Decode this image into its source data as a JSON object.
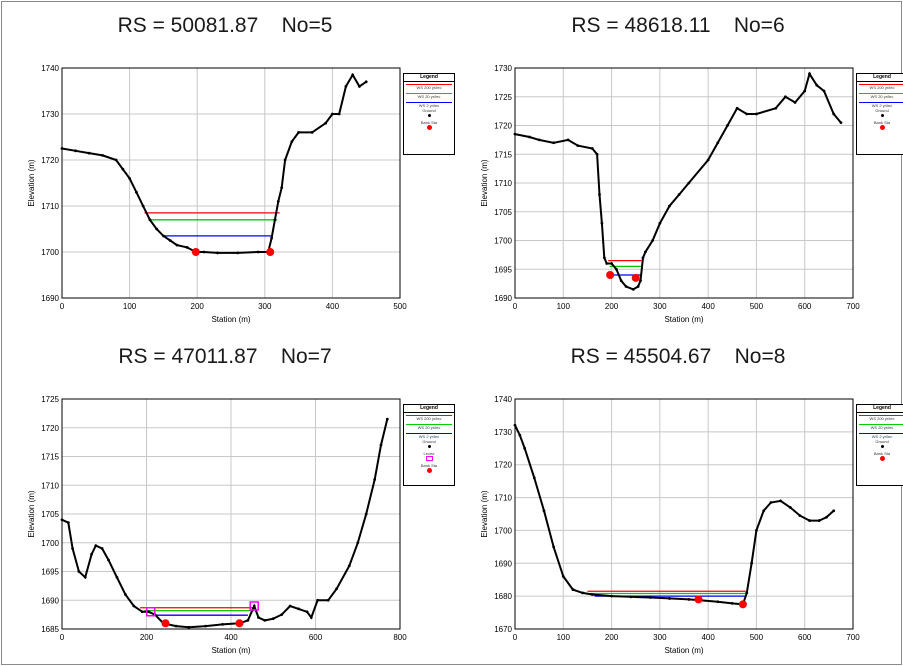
{
  "colors": {
    "ground": "#000000",
    "ws_200": "#ff0000",
    "ws_20": "#00cc00",
    "ws_2": "#0000ff",
    "levee": "#ff00ff",
    "bank": "#ff0000",
    "grid": "#c8c8c8"
  },
  "chart_data": [
    {
      "type": "line",
      "title": "RS = 50081.87    No=5",
      "xlabel": "Station (m)",
      "ylabel": "Elevation (m)",
      "xlim": [
        0,
        500
      ],
      "ylim": [
        1690,
        1740
      ],
      "xticks": [
        0,
        100,
        200,
        300,
        400,
        500
      ],
      "yticks": [
        1690,
        1700,
        1710,
        1720,
        1730,
        1740
      ],
      "legend": {
        "title": "Legend",
        "entries": [
          "WS 200 yr/lec",
          "WS 20 yr/lec",
          "WS 2 yr/lec",
          "Ground",
          "Bank Sta"
        ],
        "placement": "right"
      },
      "ground": [
        [
          0,
          1722.5
        ],
        [
          20,
          1722
        ],
        [
          40,
          1721.5
        ],
        [
          60,
          1721
        ],
        [
          80,
          1720
        ],
        [
          90,
          1718
        ],
        [
          100,
          1716
        ],
        [
          110,
          1713
        ],
        [
          120,
          1710
        ],
        [
          130,
          1707
        ],
        [
          140,
          1705
        ],
        [
          150,
          1703.5
        ],
        [
          160,
          1702.5
        ],
        [
          170,
          1701.5
        ],
        [
          185,
          1701
        ],
        [
          198,
          1700
        ],
        [
          210,
          1700
        ],
        [
          230,
          1699.8
        ],
        [
          260,
          1699.8
        ],
        [
          290,
          1700
        ],
        [
          305,
          1700
        ],
        [
          310,
          1703
        ],
        [
          315,
          1707
        ],
        [
          320,
          1711
        ],
        [
          325,
          1714
        ],
        [
          330,
          1720
        ],
        [
          340,
          1724
        ],
        [
          350,
          1726
        ],
        [
          370,
          1726
        ],
        [
          390,
          1728
        ],
        [
          400,
          1730
        ],
        [
          410,
          1730
        ],
        [
          420,
          1736
        ],
        [
          430,
          1738.5
        ],
        [
          440,
          1736
        ],
        [
          450,
          1737
        ]
      ],
      "water": [
        {
          "name": "WS 200 yr/lec",
          "elev": 1708.5,
          "x": [
            122,
            322
          ]
        },
        {
          "name": "WS 20 yr/lec",
          "elev": 1707,
          "x": [
            128,
            318
          ]
        },
        {
          "name": "WS 2 yr/lec",
          "elev": 1703.5,
          "x": [
            150,
            312
          ]
        }
      ],
      "banks": [
        [
          198,
          1700
        ],
        [
          308,
          1700
        ]
      ],
      "levees": []
    },
    {
      "type": "line",
      "title": "RS = 48618.11    No=6",
      "xlabel": "Station (m)",
      "ylabel": "Elevation (m)",
      "xlim": [
        0,
        700
      ],
      "ylim": [
        1690,
        1730
      ],
      "xticks": [
        0,
        100,
        200,
        300,
        400,
        500,
        600,
        700
      ],
      "yticks": [
        1690,
        1695,
        1700,
        1705,
        1710,
        1715,
        1720,
        1725,
        1730
      ],
      "legend": {
        "title": "Legend",
        "entries": [
          "WS 200 yr/lec",
          "WS 20 yr/lec",
          "WS 2 yr/lec",
          "Ground",
          "Bank Sta"
        ],
        "placement": "right"
      },
      "ground": [
        [
          0,
          1718.5
        ],
        [
          30,
          1718
        ],
        [
          50,
          1717.5
        ],
        [
          80,
          1717
        ],
        [
          110,
          1717.5
        ],
        [
          130,
          1716.5
        ],
        [
          160,
          1716
        ],
        [
          170,
          1715
        ],
        [
          175,
          1708
        ],
        [
          180,
          1703
        ],
        [
          185,
          1697
        ],
        [
          190,
          1696
        ],
        [
          200,
          1696
        ],
        [
          210,
          1695
        ],
        [
          220,
          1693
        ],
        [
          230,
          1692
        ],
        [
          245,
          1691.5
        ],
        [
          255,
          1692
        ],
        [
          260,
          1693
        ],
        [
          265,
          1697
        ],
        [
          270,
          1698
        ],
        [
          285,
          1700
        ],
        [
          300,
          1703
        ],
        [
          320,
          1706
        ],
        [
          340,
          1708
        ],
        [
          360,
          1710
        ],
        [
          400,
          1714
        ],
        [
          420,
          1717
        ],
        [
          440,
          1720
        ],
        [
          460,
          1723
        ],
        [
          480,
          1722
        ],
        [
          500,
          1722
        ],
        [
          540,
          1723
        ],
        [
          560,
          1725
        ],
        [
          580,
          1724
        ],
        [
          600,
          1726
        ],
        [
          610,
          1729
        ],
        [
          625,
          1727
        ],
        [
          640,
          1726
        ],
        [
          660,
          1722
        ],
        [
          675,
          1720.5
        ]
      ],
      "water": [
        {
          "name": "WS 200 yr/lec",
          "elev": 1696.5,
          "x": [
            193,
            262
          ]
        },
        {
          "name": "WS 20 yr/lec",
          "elev": 1695.5,
          "x": [
            196,
            262
          ]
        },
        {
          "name": "WS 2 yr/lec",
          "elev": 1694,
          "x": [
            205,
            260
          ]
        }
      ],
      "banks": [
        [
          197,
          1694
        ],
        [
          250,
          1693.5
        ]
      ],
      "levees": []
    },
    {
      "type": "line",
      "title": "RS = 47011.87    No=7",
      "xlabel": "Station (m)",
      "ylabel": "Elevation (m)",
      "xlim": [
        0,
        800
      ],
      "ylim": [
        1685,
        1725
      ],
      "xticks": [
        0,
        200,
        400,
        600,
        800
      ],
      "yticks": [
        1685,
        1690,
        1695,
        1700,
        1705,
        1710,
        1715,
        1720,
        1725
      ],
      "legend": {
        "title": "Legend",
        "entries": [
          "WS 200 yr/lec",
          "WS 20 yr/lec",
          "WS 2 yr/lec",
          "Ground",
          "Levee",
          "Bank Sta"
        ],
        "placement": "right"
      },
      "ground": [
        [
          0,
          1704
        ],
        [
          15,
          1703.5
        ],
        [
          25,
          1699
        ],
        [
          40,
          1695
        ],
        [
          55,
          1694
        ],
        [
          70,
          1698
        ],
        [
          80,
          1699.5
        ],
        [
          95,
          1699
        ],
        [
          110,
          1697
        ],
        [
          130,
          1694
        ],
        [
          150,
          1691
        ],
        [
          170,
          1689
        ],
        [
          190,
          1688
        ],
        [
          205,
          1688
        ],
        [
          220,
          1687.5
        ],
        [
          240,
          1686
        ],
        [
          270,
          1685.5
        ],
        [
          300,
          1685.3
        ],
        [
          340,
          1685.5
        ],
        [
          380,
          1685.8
        ],
        [
          420,
          1686
        ],
        [
          440,
          1686.5
        ],
        [
          455,
          1689
        ],
        [
          465,
          1687
        ],
        [
          480,
          1686.5
        ],
        [
          500,
          1686.8
        ],
        [
          520,
          1687.5
        ],
        [
          540,
          1689
        ],
        [
          560,
          1688.5
        ],
        [
          580,
          1688
        ],
        [
          590,
          1687
        ],
        [
          605,
          1690
        ],
        [
          630,
          1690
        ],
        [
          650,
          1692
        ],
        [
          680,
          1696
        ],
        [
          700,
          1700
        ],
        [
          720,
          1705
        ],
        [
          740,
          1711
        ],
        [
          755,
          1717
        ],
        [
          770,
          1721.5
        ]
      ],
      "water": [
        {
          "name": "WS 200 yr/lec",
          "elev": 1688.7,
          "x": [
            185,
            455
          ]
        },
        {
          "name": "WS 20 yr/lec",
          "elev": 1688.2,
          "x": [
            195,
            455
          ]
        },
        {
          "name": "WS 2 yr/lec",
          "elev": 1687.4,
          "x": [
            215,
            440
          ]
        }
      ],
      "banks": [
        [
          245,
          1686
        ],
        [
          420,
          1686
        ]
      ],
      "levees": [
        [
          210,
          1688
        ],
        [
          455,
          1689
        ]
      ]
    },
    {
      "type": "line",
      "title": "RS = 45504.67    No=8",
      "xlabel": "Station (m)",
      "ylabel": "Elevation (m)",
      "xlim": [
        0,
        700
      ],
      "ylim": [
        1670,
        1740
      ],
      "xticks": [
        0,
        100,
        200,
        300,
        400,
        500,
        600,
        700
      ],
      "yticks": [
        1670,
        1680,
        1690,
        1700,
        1710,
        1720,
        1730,
        1740
      ],
      "legend": {
        "title": "Legend",
        "entries": [
          "WS 200 yr/lec",
          "WS 20 yr/lec",
          "WS 2 yr/lec",
          "Ground",
          "Bank Sta"
        ],
        "placement": "right"
      },
      "ground": [
        [
          0,
          1732
        ],
        [
          10,
          1729
        ],
        [
          20,
          1725
        ],
        [
          40,
          1716
        ],
        [
          60,
          1706
        ],
        [
          80,
          1695
        ],
        [
          100,
          1686
        ],
        [
          120,
          1682
        ],
        [
          140,
          1681
        ],
        [
          160,
          1680.5
        ],
        [
          200,
          1680
        ],
        [
          240,
          1679.8
        ],
        [
          280,
          1679.6
        ],
        [
          320,
          1679.3
        ],
        [
          360,
          1679
        ],
        [
          380,
          1678.8
        ],
        [
          420,
          1678.3
        ],
        [
          450,
          1677.8
        ],
        [
          472,
          1677.5
        ],
        [
          480,
          1681
        ],
        [
          490,
          1690
        ],
        [
          500,
          1700
        ],
        [
          515,
          1706
        ],
        [
          530,
          1708.5
        ],
        [
          550,
          1709
        ],
        [
          570,
          1707
        ],
        [
          590,
          1704.5
        ],
        [
          610,
          1703
        ],
        [
          630,
          1703
        ],
        [
          645,
          1704
        ],
        [
          660,
          1706
        ]
      ],
      "water": [
        {
          "name": "WS 200 yr/lec",
          "elev": 1681.5,
          "x": [
            150,
            478
          ]
        },
        {
          "name": "WS 20 yr/lec",
          "elev": 1680.8,
          "x": [
            155,
            477
          ]
        },
        {
          "name": "WS 2 yr/lec",
          "elev": 1680,
          "x": [
            165,
            476
          ]
        }
      ],
      "banks": [
        [
          380,
          1679
        ],
        [
          472,
          1677.5
        ]
      ],
      "levees": []
    }
  ]
}
